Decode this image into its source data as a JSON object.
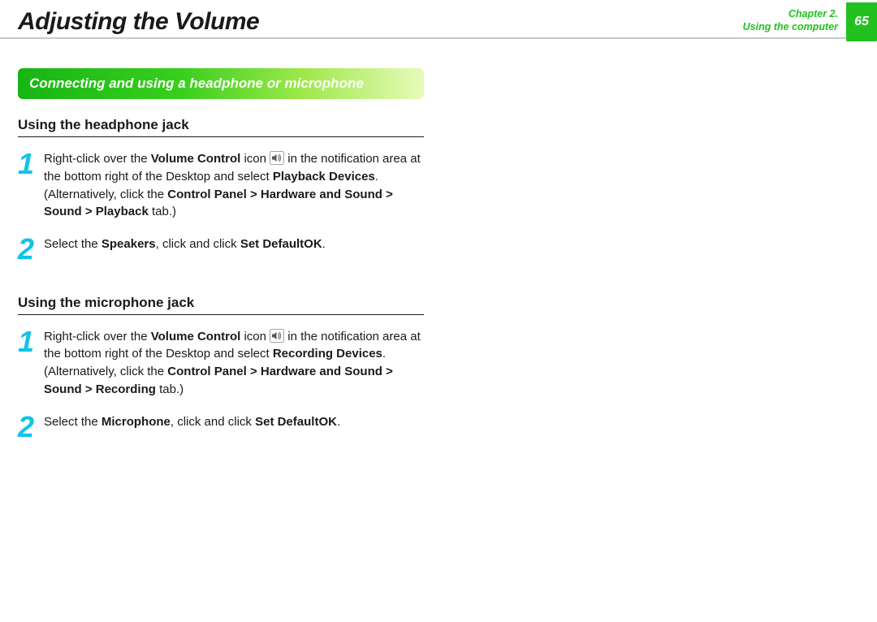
{
  "header": {
    "title": "Adjusting the Volume",
    "chapter_line1": "Chapter 2.",
    "chapter_line2": "Using the computer",
    "page_number": "65"
  },
  "colors": {
    "accent_green": "#23c11f",
    "step_number": "#0fc4e8",
    "banner_gradient": [
      "#17b515",
      "#38cf1d",
      "#9ee84a",
      "#e6fbb9"
    ],
    "text": "#1a1a1a",
    "divider": "#c7c8c9"
  },
  "section_banner": "Connecting and using a headphone or microphone",
  "subsections": [
    {
      "title": "Using the headphone jack",
      "steps": [
        {
          "n": "1",
          "pre": "Right-click over the ",
          "b1": "Volume Control",
          "mid1": " icon ",
          "icon": "sound",
          "mid2": " in the notification area at the bottom right of the Desktop and select ",
          "b2": "Playback Devices",
          "mid3": ". (Alternatively, click the ",
          "b3": "Control Panel > Hardware and Sound > Sound > Playback",
          "post": " tab.)"
        },
        {
          "n": "2",
          "pre": "Select the ",
          "b1": "Speakers",
          "mid1": ", click ",
          "b2": "Set Default",
          "mid2": " and click ",
          "b3": "OK",
          "post": "."
        }
      ]
    },
    {
      "title": "Using the microphone jack",
      "steps": [
        {
          "n": "1",
          "pre": "Right-click over the ",
          "b1": "Volume Control",
          "mid1": " icon ",
          "icon": "sound",
          "mid2": " in the notification area at the bottom right of the Desktop and select ",
          "b2": "Recording Devices",
          "mid3": ". (Alternatively, click the ",
          "b3": "Control Panel > Hardware and Sound > Sound > Recording",
          "post": " tab.)"
        },
        {
          "n": "2",
          "pre": "Select the ",
          "b1": "Microphone",
          "mid1": ", click ",
          "b2": "Set Default",
          "mid2": " and click ",
          "b3": "OK",
          "post": "."
        }
      ]
    }
  ]
}
